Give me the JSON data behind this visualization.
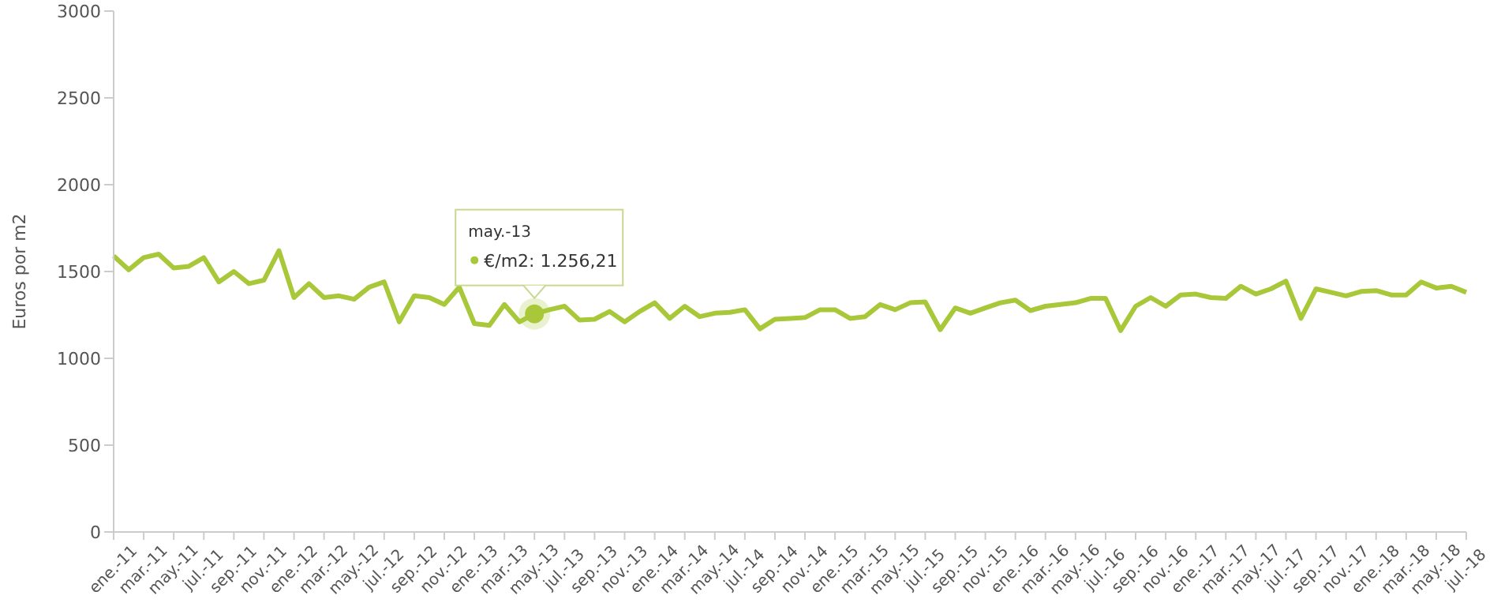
{
  "chart_data": {
    "type": "line",
    "ylabel": "Euros por m2",
    "categories": [
      "ene.-11",
      null,
      "mar.-11",
      null,
      "may.-11",
      null,
      "jul.-11",
      null,
      "sep.-11",
      null,
      "nov.-11",
      null,
      "ene.-12",
      null,
      "mar.-12",
      null,
      "may.-12",
      null,
      "jul.-12",
      null,
      "sep.-12",
      null,
      "nov.-12",
      null,
      "ene.-13",
      null,
      "mar.-13",
      null,
      "may.-13",
      null,
      "jul.-13",
      null,
      "sep.-13",
      null,
      "nov.-13",
      null,
      "ene.-14",
      null,
      "mar.-14",
      null,
      "may.-14",
      null,
      "jul.-14",
      null,
      "sep.-14",
      null,
      "nov.-14",
      null,
      "ene.-15",
      null,
      "mar.-15",
      null,
      "may.-15",
      null,
      "jul.-15",
      null,
      "sep.-15",
      null,
      "nov.-15",
      null,
      "ene.-16",
      null,
      "mar.-16",
      null,
      "may.-16",
      null,
      "jul.-16",
      null,
      "sep.-16",
      null,
      "nov.-16",
      null,
      "ene.-17",
      null,
      "mar.-17",
      null,
      "may.-17",
      null,
      "jul.-17",
      null,
      "sep.-17",
      null,
      "nov.-17",
      null,
      "ene.-18",
      null,
      "mar.-18",
      null,
      "may.-18",
      null,
      "jul.-18"
    ],
    "series": [
      {
        "color": "#a8c83a",
        "values": [
          1590,
          1510,
          1580,
          1600,
          1520,
          1530,
          1580,
          1440,
          1500,
          1430,
          1450,
          1620,
          1350,
          1430,
          1350,
          1360,
          1340,
          1410,
          1440,
          1210,
          1360,
          1350,
          1310,
          1410,
          1200,
          1190,
          1310,
          1210,
          1256.21,
          1280,
          1300,
          1220,
          1225,
          1270,
          1210,
          1270,
          1320,
          1230,
          1300,
          1240,
          1260,
          1265,
          1280,
          1170,
          1225,
          1230,
          1235,
          1280,
          1280,
          1230,
          1240,
          1310,
          1280,
          1320,
          1325,
          1165,
          1290,
          1260,
          1290,
          1320,
          1335,
          1275,
          1300,
          1310,
          1320,
          1345,
          1345,
          1160,
          1300,
          1350,
          1300,
          1365,
          1370,
          1350,
          1345,
          1415,
          1370,
          1400,
          1445,
          1230,
          1400,
          1380,
          1360,
          1385,
          1390,
          1365,
          1365,
          1440,
          1405,
          1415,
          1380
        ]
      }
    ],
    "ylim": [
      0,
      3000
    ],
    "yticks": [
      0,
      500,
      1000,
      1500,
      2000,
      2500,
      3000
    ],
    "grid": false,
    "legend": false,
    "marker": "none",
    "line_style": "solid",
    "annotations": [
      {
        "text": "€/m2: 1.256,21",
        "x": "may.-13",
        "y": 1256.21
      }
    ]
  }
}
